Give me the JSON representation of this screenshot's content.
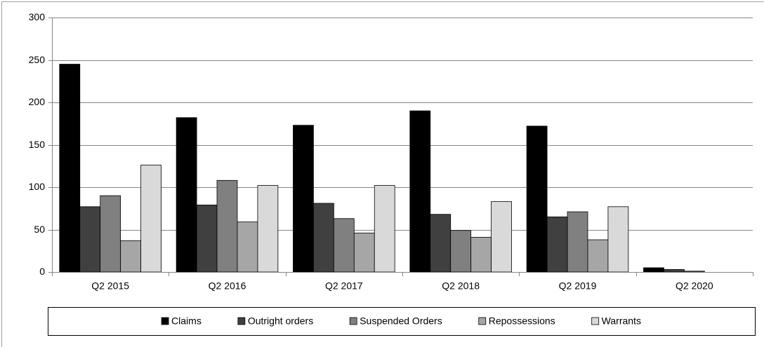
{
  "chart_data": {
    "type": "bar",
    "categories": [
      "Q2 2015",
      "Q2 2016",
      "Q2 2017",
      "Q2 2018",
      "Q2 2019",
      "Q2 2020"
    ],
    "series": [
      {
        "name": "Claims",
        "color": "#000000",
        "values": [
          245,
          182,
          173,
          190,
          172,
          5
        ]
      },
      {
        "name": "Outright orders",
        "color": "#404040",
        "values": [
          77,
          79,
          81,
          68,
          65,
          3
        ]
      },
      {
        "name": "Suspended Orders",
        "color": "#808080",
        "values": [
          90,
          108,
          63,
          49,
          71,
          1
        ]
      },
      {
        "name": "Repossessions",
        "color": "#a6a6a6",
        "values": [
          37,
          59,
          46,
          41,
          38,
          0
        ]
      },
      {
        "name": "Warrants",
        "color": "#d9d9d9",
        "values": [
          126,
          102,
          102,
          83,
          77,
          0
        ]
      }
    ],
    "ylim": [
      0,
      300
    ],
    "yticks": [
      0,
      50,
      100,
      150,
      200,
      250,
      300
    ],
    "grid": true,
    "legend": "bottom"
  }
}
